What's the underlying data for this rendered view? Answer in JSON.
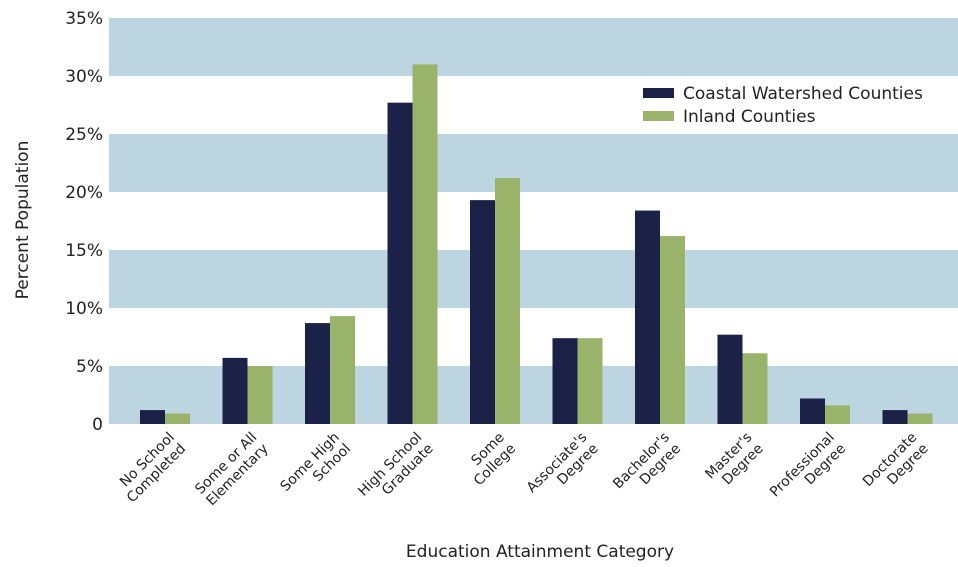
{
  "chart_data": {
    "type": "bar",
    "title": "",
    "xlabel": "Education Attainment Category",
    "ylabel": "Percent Population",
    "ylim": [
      0,
      35
    ],
    "yticks": [
      0,
      5,
      10,
      15,
      20,
      25,
      30,
      35
    ],
    "ytick_labels": [
      "0",
      "5%",
      "10%",
      "15%",
      "20%",
      "25%",
      "30%",
      "35%"
    ],
    "grid": "alternating horizontal bands",
    "legend_position": "top-right",
    "categories": [
      [
        "No School",
        "Completed"
      ],
      [
        "Some or All",
        "Elementary"
      ],
      [
        "Some High",
        "School"
      ],
      [
        "High School",
        "Graduate"
      ],
      [
        "Some",
        "College"
      ],
      [
        "Associate's",
        "Degree"
      ],
      [
        "Bachelor's",
        "Degree"
      ],
      [
        "Master's",
        "Degree"
      ],
      [
        "Professional",
        "Degree"
      ],
      [
        "Doctorate",
        "Degree"
      ]
    ],
    "series": [
      {
        "name": "Coastal Watershed Counties",
        "color": "#1c2148",
        "values": [
          1.2,
          5.7,
          8.7,
          27.7,
          19.3,
          7.4,
          18.4,
          7.7,
          2.2,
          1.2
        ]
      },
      {
        "name": "Inland Counties",
        "color": "#9ab36b",
        "values": [
          0.9,
          5.0,
          9.3,
          31.0,
          21.2,
          7.4,
          16.2,
          6.1,
          1.6,
          0.9
        ]
      }
    ],
    "band_color": "#bcd5e1",
    "band_alt_color": "#ffffff"
  }
}
